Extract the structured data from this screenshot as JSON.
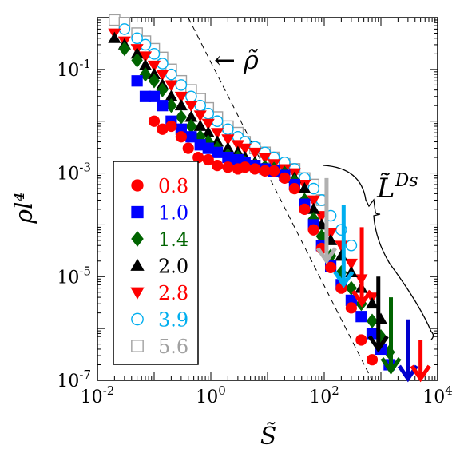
{
  "chart_data": {
    "type": "scatter",
    "title": "",
    "xlabel": "S̃",
    "ylabel": "ρl⁴",
    "xscale": "log",
    "yscale": "log",
    "xlim": [
      0.01,
      10000
    ],
    "ylim": [
      1e-07,
      1
    ],
    "grid": false,
    "legend_position": "lower-left",
    "x_ticks": [
      {
        "value": 0.01,
        "base": "10",
        "exp": "-2"
      },
      {
        "value": 1,
        "base": "10",
        "exp": "0"
      },
      {
        "value": 100,
        "base": "10",
        "exp": "2"
      },
      {
        "value": 10000,
        "base": "10",
        "exp": "4"
      }
    ],
    "y_ticks": [
      {
        "value": 1e-07,
        "base": "10",
        "exp": "-7"
      },
      {
        "value": 1e-05,
        "base": "10",
        "exp": "-5"
      },
      {
        "value": 0.001,
        "base": "10",
        "exp": "-3"
      },
      {
        "value": 0.1,
        "base": "10",
        "exp": "-1"
      }
    ],
    "series": [
      {
        "name": "0.8",
        "marker": "circle",
        "color": "#ff0000",
        "fill": true,
        "x": [
          0.1,
          0.14,
          0.2,
          0.3,
          0.4,
          0.6,
          0.9,
          1.3,
          2,
          3,
          4,
          6,
          9,
          13,
          20,
          30,
          45,
          65,
          90,
          130,
          200,
          300,
          450,
          700
        ],
        "y": [
          0.01,
          0.007,
          0.008,
          0.005,
          0.003,
          0.002,
          0.0018,
          0.0014,
          0.0013,
          0.0012,
          0.0013,
          0.0012,
          0.0011,
          0.0011,
          0.0008,
          0.0005,
          0.0002,
          8e-05,
          3.5e-05,
          1.5e-05,
          6e-06,
          2.5e-06,
          6e-07,
          2.5e-07
        ]
      },
      {
        "name": "1.0",
        "marker": "square",
        "color": "#0000ff",
        "fill": true,
        "x": [
          0.05,
          0.07,
          0.1,
          0.14,
          0.2,
          0.3,
          0.45,
          0.65,
          0.9,
          1.3,
          2,
          3,
          4,
          6,
          9,
          13,
          20,
          30,
          45,
          65,
          90,
          130,
          200,
          300,
          450,
          700,
          1000,
          1400
        ],
        "y": [
          0.06,
          0.03,
          0.03,
          0.02,
          0.01,
          0.007,
          0.005,
          0.0035,
          0.003,
          0.0025,
          0.002,
          0.0018,
          0.0016,
          0.0014,
          0.0012,
          0.0011,
          0.0009,
          0.0006,
          0.00025,
          0.0001,
          4e-05,
          1.6e-05,
          7e-06,
          3.5e-06,
          1.7e-06,
          8e-07,
          4e-07,
          2e-07
        ]
      },
      {
        "name": "1.4",
        "marker": "diamond",
        "color": "#006400",
        "fill": true,
        "x": [
          0.03,
          0.05,
          0.07,
          0.1,
          0.14,
          0.2,
          0.3,
          0.45,
          0.65,
          0.9,
          1.3,
          2,
          3,
          4,
          6,
          9,
          13,
          20,
          30,
          45,
          65,
          90,
          130,
          200,
          300,
          450,
          700,
          1000,
          1400
        ],
        "y": [
          0.25,
          0.15,
          0.08,
          0.06,
          0.04,
          0.02,
          0.012,
          0.008,
          0.005,
          0.004,
          0.003,
          0.0022,
          0.002,
          0.0016,
          0.0014,
          0.0013,
          0.0012,
          0.001,
          0.0007,
          0.0003,
          0.00013,
          6e-05,
          2.5e-05,
          1.2e-05,
          6e-06,
          3e-06,
          1.4e-06,
          7e-07,
          3.5e-07
        ]
      },
      {
        "name": "2.0",
        "marker": "triangle-up",
        "color": "#000000",
        "fill": true,
        "x": [
          0.02,
          0.03,
          0.05,
          0.07,
          0.1,
          0.14,
          0.2,
          0.3,
          0.45,
          0.65,
          0.9,
          1.3,
          2,
          3,
          4,
          6,
          9,
          13,
          20,
          30,
          45,
          65,
          90,
          130,
          200,
          300,
          450,
          700,
          1000
        ],
        "y": [
          0.4,
          0.3,
          0.2,
          0.12,
          0.08,
          0.05,
          0.03,
          0.02,
          0.012,
          0.008,
          0.006,
          0.004,
          0.003,
          0.0025,
          0.002,
          0.0016,
          0.0013,
          0.0012,
          0.001,
          0.0008,
          0.0005,
          0.0002,
          0.0001,
          5e-05,
          2.5e-05,
          1.2e-05,
          6e-06,
          3e-06,
          1.5e-06
        ]
      },
      {
        "name": "2.8",
        "marker": "triangle-down",
        "color": "#ff0000",
        "fill": true,
        "x": [
          0.02,
          0.03,
          0.05,
          0.07,
          0.1,
          0.14,
          0.2,
          0.3,
          0.45,
          0.65,
          0.9,
          1.3,
          2,
          3,
          4,
          6,
          9,
          13,
          20,
          30,
          45,
          65,
          90,
          130,
          200,
          300,
          450,
          700
        ],
        "y": [
          0.5,
          0.35,
          0.25,
          0.18,
          0.12,
          0.08,
          0.05,
          0.03,
          0.02,
          0.013,
          0.009,
          0.006,
          0.0045,
          0.0035,
          0.003,
          0.0025,
          0.002,
          0.0015,
          0.0012,
          0.001,
          0.0006,
          0.0003,
          0.00015,
          7e-05,
          4e-05,
          1.8e-05,
          9e-06,
          4e-06
        ]
      },
      {
        "name": "3.9",
        "marker": "circle",
        "color": "#00aeef",
        "fill": false,
        "x": [
          0.03,
          0.05,
          0.07,
          0.1,
          0.14,
          0.2,
          0.3,
          0.45,
          0.65,
          0.9,
          1.3,
          2,
          3,
          4,
          6,
          9,
          13,
          20,
          30,
          45,
          65,
          90,
          130,
          200,
          300
        ],
        "y": [
          0.6,
          0.4,
          0.3,
          0.2,
          0.13,
          0.08,
          0.05,
          0.03,
          0.02,
          0.014,
          0.01,
          0.007,
          0.005,
          0.004,
          0.0032,
          0.0025,
          0.002,
          0.0016,
          0.0012,
          0.0008,
          0.0005,
          0.0003,
          0.00015,
          8e-05,
          4e-05
        ]
      },
      {
        "name": "5.6",
        "marker": "square",
        "color": "#a0a0a0",
        "fill": false,
        "x": [
          0.02,
          0.03,
          0.05,
          0.07,
          0.1,
          0.14,
          0.2,
          0.3,
          0.45,
          0.65,
          0.9,
          1.3,
          2,
          3,
          4,
          6,
          9,
          13,
          20,
          30,
          45,
          65,
          90
        ],
        "y": [
          0.9,
          0.8,
          0.5,
          0.35,
          0.25,
          0.17,
          0.1,
          0.06,
          0.04,
          0.027,
          0.018,
          0.012,
          0.008,
          0.006,
          0.004,
          0.003,
          0.0025,
          0.002,
          0.0015,
          0.0012,
          0.0008,
          0.0006,
          0.0003
        ]
      }
    ],
    "guide_line": {
      "x": [
        0.4,
        700
      ],
      "y": [
        1,
        1e-07
      ],
      "style": "dashed"
    },
    "arrows": [
      {
        "x": 110,
        "y_top": 0.0008,
        "y_tip": 2e-05,
        "color": "#b0b0b0"
      },
      {
        "x": 220,
        "y_top": 0.00024,
        "y_tip": 7e-06,
        "color": "#00aeef"
      },
      {
        "x": 460,
        "y_top": 9e-05,
        "y_tip": 3e-06,
        "color": "#ff0000"
      },
      {
        "x": 900,
        "y_top": 1e-05,
        "y_tip": 4e-07,
        "color": "#000000"
      },
      {
        "x": 1500,
        "y_top": 4e-06,
        "y_tip": 1.5e-07,
        "color": "#006400"
      },
      {
        "x": 3000,
        "y_top": 1.5e-06,
        "y_tip": 6e-08,
        "color": "#0000cd"
      },
      {
        "x": 5000,
        "y_top": 6e-07,
        "y_tip": 2e-08,
        "color": "#ff0000"
      }
    ],
    "annotations": {
      "rho_label": "← ρ̃",
      "lds_label": "L̃",
      "lds_superscript": "Ds"
    }
  }
}
